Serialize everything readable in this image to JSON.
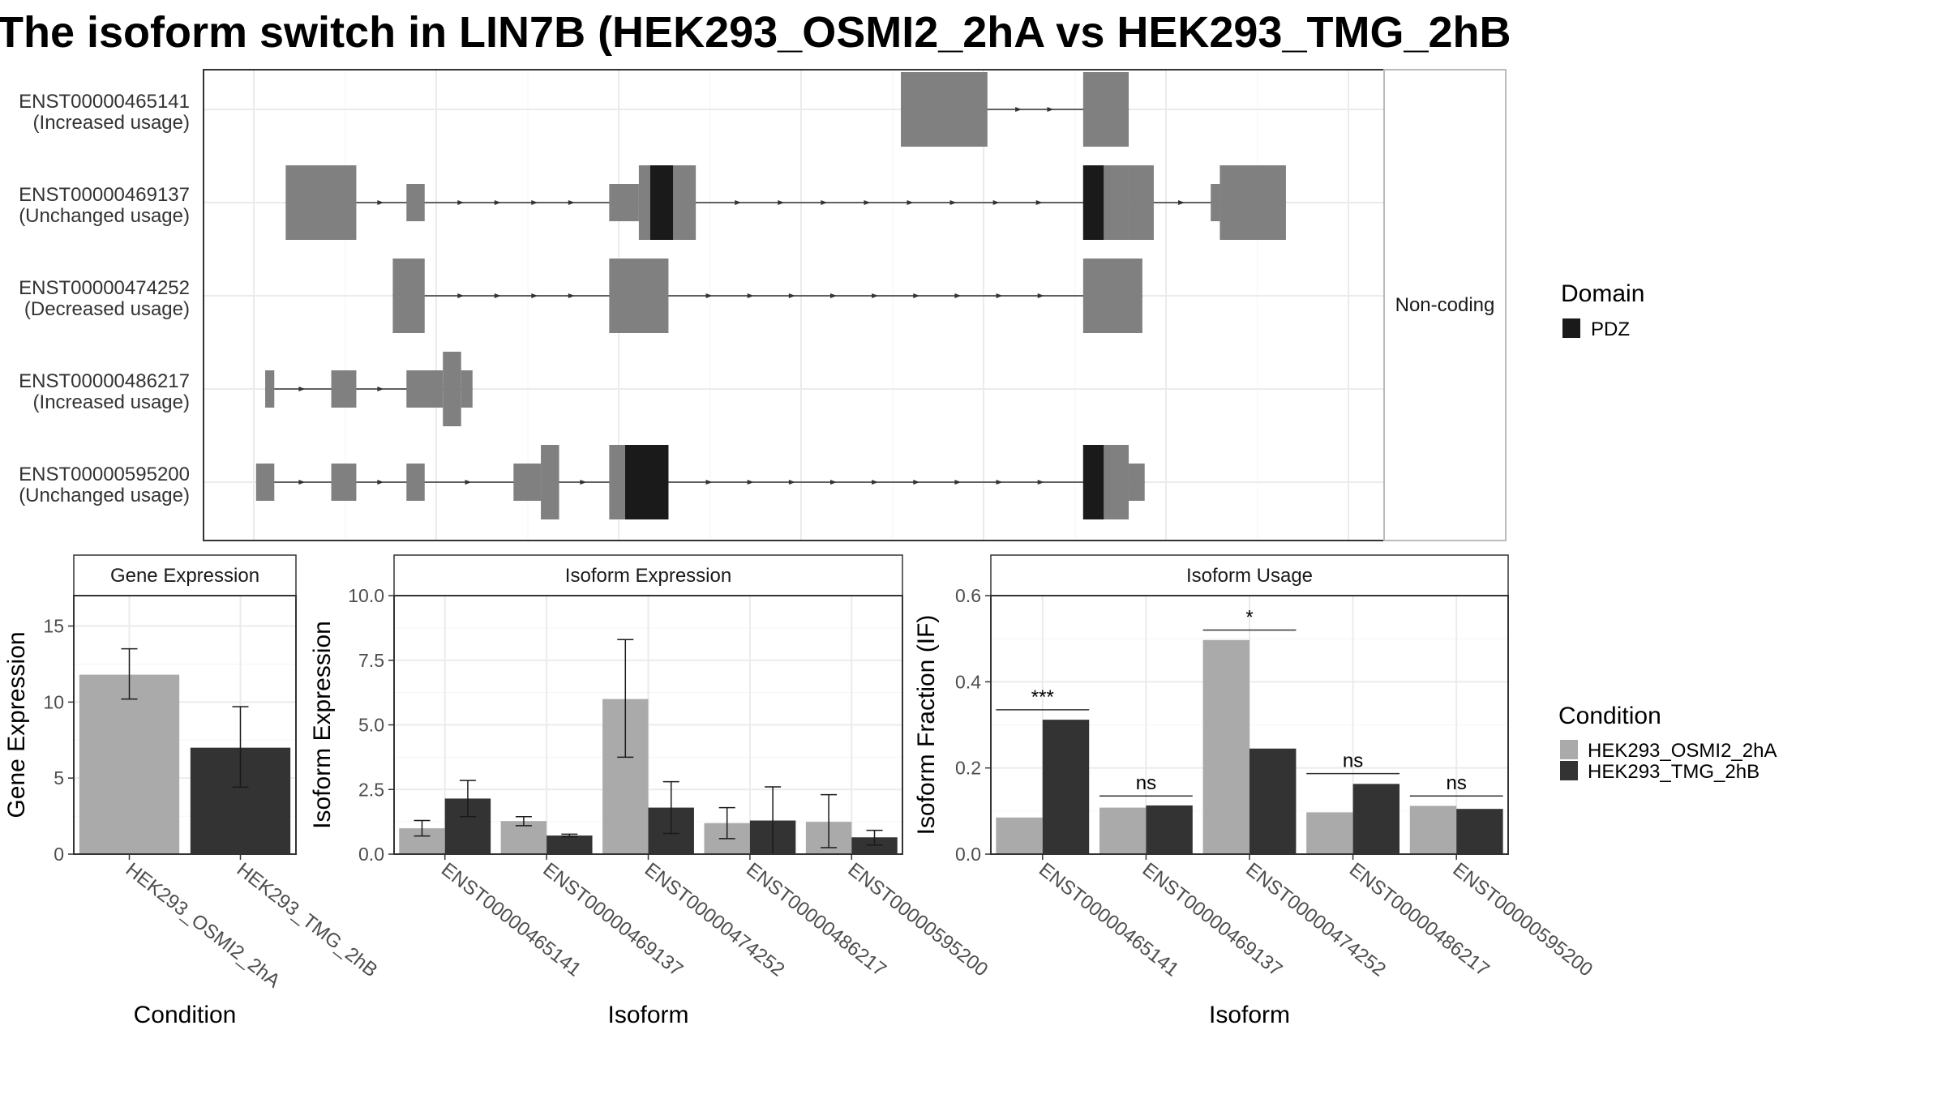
{
  "title": "The isoform switch in LIN7B (HEK293_OSMI2_2hA vs HEK293_TMG_2hB",
  "colors": {
    "exon": "#808080",
    "domain_pdz": "#1a1a1a",
    "cond_a": "#aaaaaa",
    "cond_b": "#333333",
    "grid": "#ebebeb",
    "strip_bg": "#ffffff"
  },
  "transcript_panel": {
    "strip_label": "Non-coding",
    "rows": [
      {
        "id": "ENST00000465141",
        "usage": "(Increased usage)",
        "exons": [
          [
            14.2,
            16.1,
            "full"
          ],
          [
            18.2,
            19.2,
            "full"
          ]
        ],
        "domains": []
      },
      {
        "id": "ENST00000469137",
        "usage": "(Unchanged usage)",
        "exons": [
          [
            0.7,
            2.25,
            "full"
          ],
          [
            3.35,
            3.75,
            "half"
          ],
          [
            7.8,
            8.45,
            "half"
          ],
          [
            8.45,
            9.7,
            "full"
          ],
          [
            18.2,
            19.2,
            "full"
          ],
          [
            19.2,
            19.75,
            "full"
          ],
          [
            21.0,
            21.2,
            "half"
          ],
          [
            21.2,
            22.65,
            "full"
          ]
        ],
        "domains": [
          [
            8.7,
            9.2,
            "PDZ"
          ],
          [
            18.2,
            18.65,
            "PDZ"
          ]
        ]
      },
      {
        "id": "ENST00000474252",
        "usage": "(Decreased usage)",
        "exons": [
          [
            3.05,
            3.75,
            "full"
          ],
          [
            7.8,
            9.1,
            "full"
          ],
          [
            18.2,
            19.5,
            "full"
          ]
        ],
        "domains": []
      },
      {
        "id": "ENST00000486217",
        "usage": "(Increased usage)",
        "exons": [
          [
            0.25,
            0.45,
            "half"
          ],
          [
            1.7,
            2.25,
            "half"
          ],
          [
            3.35,
            4.15,
            "half"
          ],
          [
            4.15,
            4.55,
            "full"
          ],
          [
            4.55,
            4.8,
            "half"
          ]
        ],
        "domains": []
      },
      {
        "id": "ENST00000595200",
        "usage": "(Unchanged usage)",
        "exons": [
          [
            0.05,
            0.45,
            "half"
          ],
          [
            1.7,
            2.25,
            "half"
          ],
          [
            3.35,
            3.75,
            "half"
          ],
          [
            5.7,
            6.3,
            "half"
          ],
          [
            6.3,
            6.7,
            "full"
          ],
          [
            7.8,
            8.15,
            "full"
          ],
          [
            8.15,
            9.1,
            "full"
          ],
          [
            18.2,
            19.2,
            "full"
          ],
          [
            19.2,
            19.55,
            "half"
          ]
        ],
        "domains": [
          [
            8.15,
            9.1,
            "PDZ"
          ],
          [
            18.2,
            18.65,
            "PDZ"
          ]
        ]
      }
    ]
  },
  "legend_domain": {
    "title": "Domain",
    "items": [
      {
        "label": "PDZ"
      }
    ]
  },
  "legend_condition": {
    "title": "Condition",
    "items": [
      {
        "label": "HEK293_OSMI2_2hA"
      },
      {
        "label": "HEK293_TMG_2hB"
      }
    ]
  },
  "chart_data": [
    {
      "type": "bar",
      "title": "Gene Expression",
      "xlabel": "Condition",
      "ylabel": "Gene Expression",
      "ylim": [
        0,
        17
      ],
      "yticks": [
        0,
        5,
        10,
        15
      ],
      "ytick_labels": [
        "0",
        "5",
        "10",
        "15"
      ],
      "categories": [
        "HEK293_OSMI2_2hA",
        "HEK293_TMG_2hB"
      ],
      "values": [
        11.8,
        7.0
      ],
      "err_low": [
        10.2,
        4.4
      ],
      "err_high": [
        13.5,
        9.7
      ]
    },
    {
      "type": "bar",
      "title": "Isoform Expression",
      "xlabel": "Isoform",
      "ylabel": "Isoform Expression",
      "ylim": [
        0,
        10
      ],
      "yticks": [
        0,
        2.5,
        5,
        7.5,
        10
      ],
      "ytick_labels": [
        "0.0",
        "2.5",
        "5.0",
        "7.5",
        "10.0"
      ],
      "categories": [
        "ENST00000465141",
        "ENST00000469137",
        "ENST00000474252",
        "ENST00000486217",
        "ENST00000595200"
      ],
      "series": [
        {
          "name": "HEK293_OSMI2_2hA",
          "values": [
            1.0,
            1.28,
            6.0,
            1.2,
            1.25
          ],
          "err_low": [
            0.7,
            1.1,
            3.75,
            0.6,
            0.25
          ],
          "err_high": [
            1.3,
            1.45,
            8.3,
            1.8,
            2.3
          ]
        },
        {
          "name": "HEK293_TMG_2hB",
          "values": [
            2.15,
            0.72,
            1.8,
            1.3,
            0.65
          ],
          "err_low": [
            1.45,
            0.67,
            0.8,
            0.0,
            0.35
          ],
          "err_high": [
            2.85,
            0.77,
            2.8,
            2.6,
            0.92
          ]
        }
      ]
    },
    {
      "type": "bar",
      "title": "Isoform Usage",
      "xlabel": "Isoform",
      "ylabel": "Isoform Fraction (IF)",
      "ylim": [
        0,
        0.6
      ],
      "yticks": [
        0,
        0.2,
        0.4,
        0.6
      ],
      "ytick_labels": [
        "0.0",
        "0.2",
        "0.4",
        "0.6"
      ],
      "categories": [
        "ENST00000465141",
        "ENST00000469137",
        "ENST00000474252",
        "ENST00000486217",
        "ENST00000595200"
      ],
      "series": [
        {
          "name": "HEK293_OSMI2_2hA",
          "values": [
            0.085,
            0.108,
            0.497,
            0.097,
            0.112
          ]
        },
        {
          "name": "HEK293_TMG_2hB",
          "values": [
            0.312,
            0.113,
            0.245,
            0.163,
            0.105
          ]
        }
      ],
      "significance": [
        {
          "label": "***",
          "y": 0.335
        },
        {
          "label": "ns",
          "y": 0.135
        },
        {
          "label": "*",
          "y": 0.52
        },
        {
          "label": "ns",
          "y": 0.187
        },
        {
          "label": "ns",
          "y": 0.135
        }
      ]
    }
  ]
}
